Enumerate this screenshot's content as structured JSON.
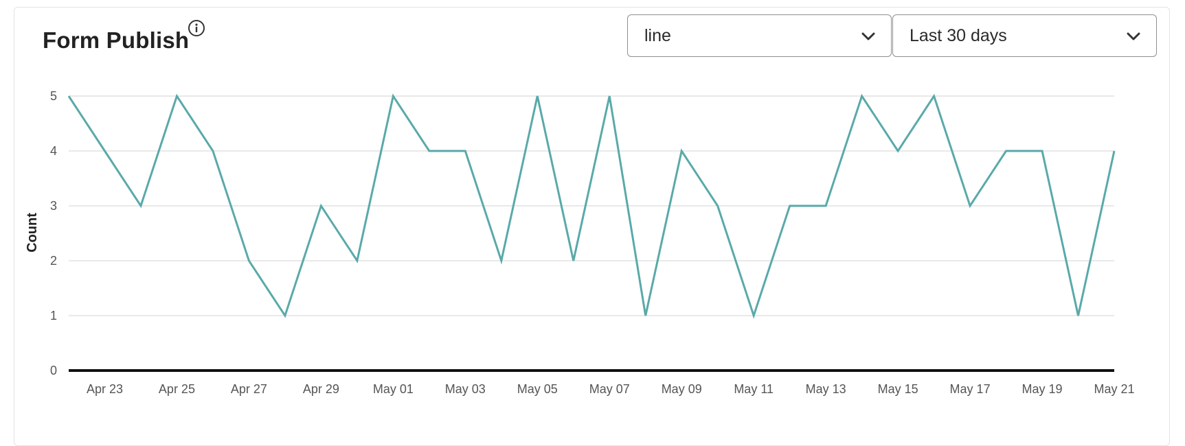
{
  "header": {
    "title": "Form Publish",
    "info_icon": "info-circle-icon"
  },
  "controls": {
    "chart_type": {
      "value": "line",
      "icon": "chevron-down-icon"
    },
    "date_range": {
      "value": "Last 30 days",
      "icon": "chevron-down-icon"
    }
  },
  "colors": {
    "series": "#5aa9a9",
    "gridline": "#e2e2e2",
    "baseline": "#111111"
  },
  "chart_data": {
    "type": "line",
    "xlabel": "",
    "ylabel": "Count",
    "ylim": [
      0,
      5
    ],
    "yticks": [
      0,
      1,
      2,
      3,
      4,
      5
    ],
    "grid": true,
    "x": [
      "Apr 22",
      "Apr 23",
      "Apr 24",
      "Apr 25",
      "Apr 26",
      "Apr 27",
      "Apr 28",
      "Apr 29",
      "Apr 30",
      "May 01",
      "May 02",
      "May 03",
      "May 04",
      "May 05",
      "May 06",
      "May 07",
      "May 08",
      "May 09",
      "May 10",
      "May 11",
      "May 12",
      "May 13",
      "May 14",
      "May 15",
      "May 16",
      "May 17",
      "May 18",
      "May 19",
      "May 20",
      "May 21"
    ],
    "xtick_labels": [
      "Apr 23",
      "Apr 25",
      "Apr 27",
      "Apr 29",
      "May 01",
      "May 03",
      "May 05",
      "May 07",
      "May 09",
      "May 11",
      "May 13",
      "May 15",
      "May 17",
      "May 19",
      "May 21"
    ],
    "series": [
      {
        "values": [
          5,
          4,
          3,
          5,
          4,
          2,
          1,
          3,
          2,
          5,
          4,
          4,
          2,
          5,
          2,
          5,
          1,
          4,
          3,
          1,
          3,
          3,
          5,
          4,
          5,
          3,
          4,
          4,
          1,
          4
        ]
      }
    ]
  }
}
